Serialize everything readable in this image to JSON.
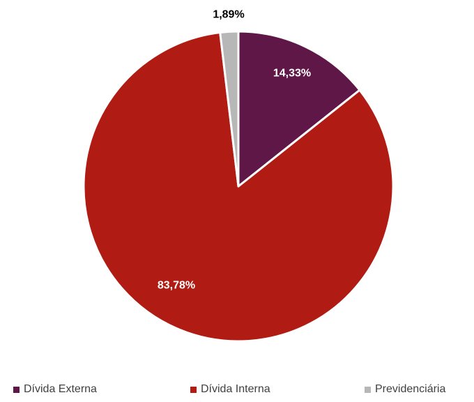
{
  "chart_data": {
    "type": "pie",
    "slices": [
      {
        "name": "Dívida Externa",
        "value": 14.33,
        "label": "14,33%",
        "color": "#5f1747",
        "label_color": "#ffffff"
      },
      {
        "name": "Dívida Interna",
        "value": 83.78,
        "label": "83,78%",
        "color": "#b01c13",
        "label_color": "#ffffff"
      },
      {
        "name": "Previdenciária",
        "value": 1.89,
        "label": "1,89%",
        "color": "#b7b7b7",
        "label_color": "#000000"
      }
    ],
    "legend_position": "bottom",
    "start_angle": "12 o'clock, clockwise"
  }
}
